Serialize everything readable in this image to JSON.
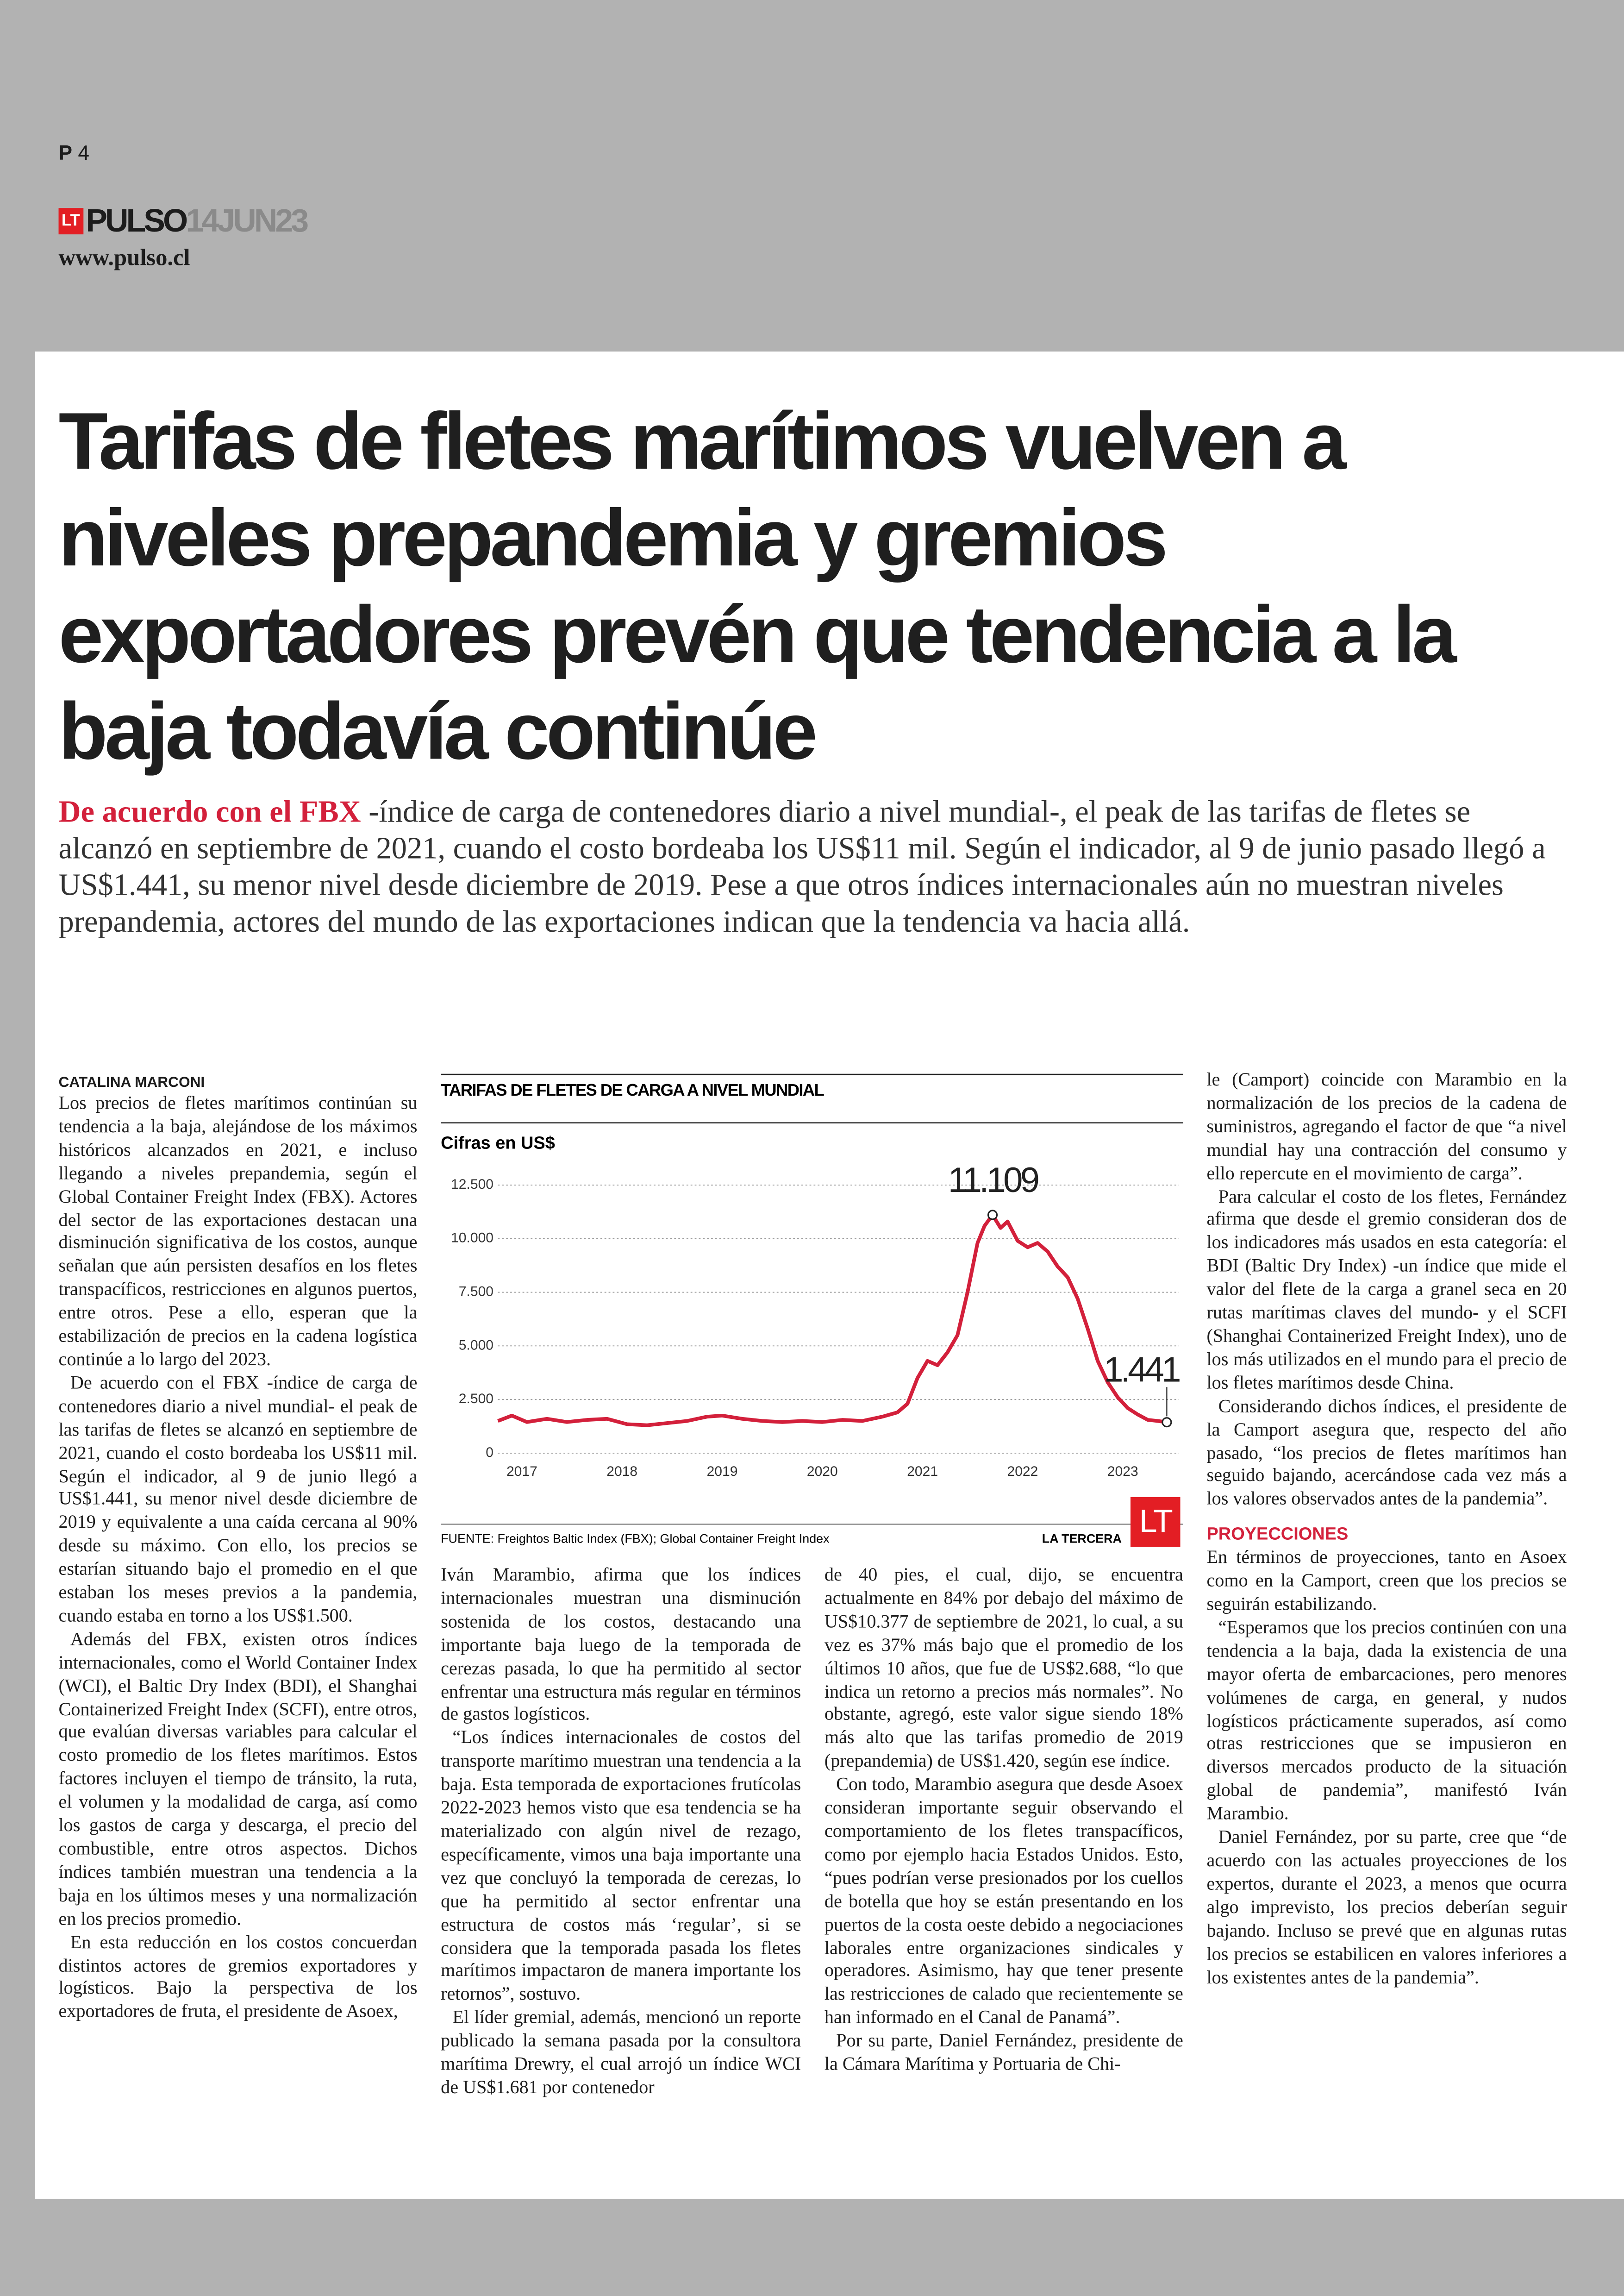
{
  "header": {
    "page_section": "P",
    "page_number": "4",
    "logo": "LT",
    "brand": "PULSO",
    "date": "14JUN23",
    "url": "www.pulso.cl"
  },
  "article": {
    "headline": "Tarifas de fletes marítimos vuelven a niveles prepandemia y gremios exportadores prevén que tendencia a la baja todavía continúe",
    "deck_lead": "De acuerdo con el FBX",
    "deck": " -índice de carga de contenedores diario a nivel mundial-, el peak de las tarifas de fletes se alcanzó en septiembre de 2021, cuando el costo bordeaba los US$11 mil. Según el indicador, al 9 de junio pasado llegó a US$1.441, su menor nivel desde diciembre de 2019. Pese a que otros índices internacionales aún no muestran niveles prepandemia, actores del mundo de las exportaciones indican que la tendencia va hacia allá.",
    "byline": "CATALINA MARCONI",
    "columns": [
      {
        "paragraphs": [
          "Los precios de fletes marítimos continúan su tendencia a la baja, alejándose de los máximos históricos alcanzados en 2021, e incluso llegando a niveles prepandemia, según el Global Container Freight Index (FBX). Actores del sector de las exportaciones destacan una disminución significativa de los costos, aunque señalan que aún persisten desafíos en los fletes transpacíficos, restricciones en algunos puertos, entre otros. Pese a ello, esperan que la estabilización de precios en la cadena logística continúe a lo largo del 2023.",
          "De acuerdo con el FBX -índice de carga de contenedores diario a nivel mundial- el peak de las tarifas de fletes se alcanzó en septiembre de 2021, cuando el costo bordeaba los US$11 mil. Según el indicador, al 9 de junio llegó a US$1.441, su menor nivel desde diciembre de 2019 y equivalente a una caída cercana al 90% desde su máximo. Con ello, los precios se estarían situando bajo el promedio en el que estaban los meses previos a la pandemia, cuando estaba en torno a los US$1.500.",
          "Además del FBX, existen otros índices internacionales, como el World Container Index (WCI), el Baltic Dry Index (BDI), el Shanghai Containerized Freight Index (SCFI), entre otros, que evalúan diversas variables para calcular el costo promedio de los fletes marítimos. Estos factores incluyen el tiempo de tránsito, la ruta, el volumen y la modalidad de carga, así como los gastos de carga y descarga, el precio del combustible, entre otros aspectos. Dichos índices también muestran una tendencia a la baja en los últimos meses y una normalización en los precios promedio.",
          "En esta reducción en los costos concuerdan distintos actores de gremios exportadores y logísticos. Bajo la perspectiva de los exportadores de fruta, el presidente de Asoex,"
        ]
      },
      {
        "paragraphs": [
          "Iván Marambio, afirma que los índices internacionales muestran una disminución sostenida de los costos, destacando una importante baja luego de la temporada de cerezas pasada, lo que ha permitido al sector enfrentar una estructura más regular en términos de gastos logísticos.",
          "“Los índices internacionales de costos del transporte marítimo muestran una tendencia a la baja. Esta temporada de exportaciones frutícolas 2022-2023 hemos visto que esa tendencia se ha materializado con algún nivel de rezago, específicamente, vimos una baja importante una vez que concluyó la temporada de cerezas, lo que ha permitido al sector enfrentar una estructura de costos más ‘regular’, si se considera que la temporada pasada los fletes marítimos impactaron de manera importante los retornos”, sostuvo.",
          "El líder gremial, además, mencionó un reporte publicado la semana pasada por la consultora marítima Drewry, el cual arrojó un índice WCI de US$1.681 por contenedor"
        ]
      },
      {
        "paragraphs": [
          "de 40 pies, el cual, dijo, se encuentra actualmente en 84% por debajo del máximo de US$10.377 de septiembre de 2021, lo cual, a su vez es 37% más bajo que el promedio de los últimos 10 años, que fue de US$2.688, “lo que indica un retorno a precios más normales”. No obstante, agregó, este valor sigue siendo 18% más alto que las tarifas promedio de 2019 (prepandemia) de US$1.420, según ese índice.",
          "Con todo, Marambio asegura que desde Asoex consideran importante seguir observando el comportamiento de los fletes transpacíficos, como por ejemplo hacia Estados Unidos. Esto, “pues podrían verse presionados por los cuellos de botella que hoy se están presentando en los puertos de la costa oeste debido a negociaciones laborales entre organizaciones sindicales y operadores. Asimismo, hay que tener presente las restricciones de calado que recientemente se han informado en el Canal de Panamá”.",
          "Por su parte, Daniel Fernández, presidente de la Cámara Marítima y Portuaria de Chi-"
        ]
      },
      {
        "paragraphs": [
          "le (Camport) coincide con Marambio en la normalización de los precios de la cadena de suministros, agregando el factor de que “a nivel mundial hay una contracción del consumo y ello repercute en el movimiento de carga”.",
          "Para calcular el costo de los fletes, Fernández afirma que desde el gremio consideran dos de los indicadores más usados en esta categoría: el BDI (Baltic Dry Index) -un índice que mide el valor del flete de la carga a granel seca en 20 rutas marítimas claves del mundo- y el SCFI (Shanghai Containerized Freight Index), uno de los más utilizados en el mundo para el precio de los fletes marítimos desde China.",
          "Considerando dichos índices, el presidente de la Camport asegura que, respecto del año pasado, “los precios de fletes marítimos han seguido bajando, acercándose cada vez más a los valores observados antes de la pandemia”."
        ],
        "subhead": "PROYECCIONES",
        "paragraphs_after": [
          "En términos de proyecciones, tanto en Asoex como en la Camport, creen que los precios se seguirán estabilizando.",
          "“Esperamos que los precios continúen con una tendencia a la baja, dada la existencia de una mayor oferta de embarcaciones, pero menores volúmenes de carga, en general, y nudos logísticos prácticamente superados, así como otras restricciones que se impusieron en diversos mercados producto de la situación global de pandemia”, manifestó Iván Marambio.",
          "Daniel Fernández, por su parte, cree que “de acuerdo con las actuales proyecciones de los expertos, durante el 2023, a menos que ocurra algo imprevisto, los precios deberían seguir bajando. Incluso se prevé que en algunas rutas los precios se estabilicen en valores inferiores a los existentes antes de la pandemia”."
        ]
      }
    ]
  },
  "chart_data": {
    "type": "line",
    "title": "TARIFAS DE FLETES DE CARGA A NIVEL MUNDIAL",
    "subtitle": "Cifras en US$",
    "source": "FUENTE: Freightos Baltic Index (FBX); Global Container Freight Index",
    "credit": "LA TERCERA",
    "logo": "LT",
    "color": "#d3203b",
    "grid": true,
    "x": [
      2016.76,
      2016.9,
      2017.05,
      2017.25,
      2017.45,
      2017.65,
      2017.85,
      2018.05,
      2018.25,
      2018.45,
      2018.65,
      2018.85,
      2019.0,
      2019.2,
      2019.4,
      2019.6,
      2019.8,
      2020.0,
      2020.2,
      2020.4,
      2020.6,
      2020.75,
      2020.85,
      2020.95,
      2021.05,
      2021.15,
      2021.25,
      2021.35,
      2021.45,
      2021.55,
      2021.62,
      2021.7,
      2021.78,
      2021.85,
      2021.95,
      2022.05,
      2022.15,
      2022.25,
      2022.35,
      2022.45,
      2022.55,
      2022.65,
      2022.75,
      2022.85,
      2022.95,
      2023.05,
      2023.15,
      2023.25,
      2023.35,
      2023.44
    ],
    "values": [
      1500,
      1750,
      1450,
      1600,
      1450,
      1550,
      1600,
      1350,
      1300,
      1400,
      1500,
      1700,
      1750,
      1600,
      1500,
      1450,
      1500,
      1450,
      1550,
      1500,
      1700,
      1900,
      2300,
      3500,
      4300,
      4100,
      4700,
      5500,
      7500,
      9800,
      10600,
      11109,
      10500,
      10800,
      9900,
      9600,
      9800,
      9400,
      8700,
      8200,
      7200,
      5800,
      4300,
      3300,
      2600,
      2100,
      1800,
      1550,
      1500,
      1441
    ],
    "xlim": [
      2016.76,
      2023.56
    ],
    "xticks": [
      2017,
      2018,
      2019,
      2020,
      2021,
      2022,
      2023
    ],
    "ylim": [
      0,
      12500
    ],
    "yticks": [
      0,
      {
        "value": 2500,
        "label": "2.500"
      },
      {
        "value": 5000,
        "label": "5.000"
      },
      {
        "value": 7500,
        "label": "7.500"
      },
      {
        "value": 10000,
        "label": "10.000"
      },
      {
        "value": 12500,
        "label": "12.500"
      }
    ],
    "annotations": [
      {
        "x": 2021.7,
        "value": 11109,
        "label": "11.109"
      },
      {
        "x": 2023.44,
        "value": 1441,
        "label": "1.441"
      }
    ]
  }
}
